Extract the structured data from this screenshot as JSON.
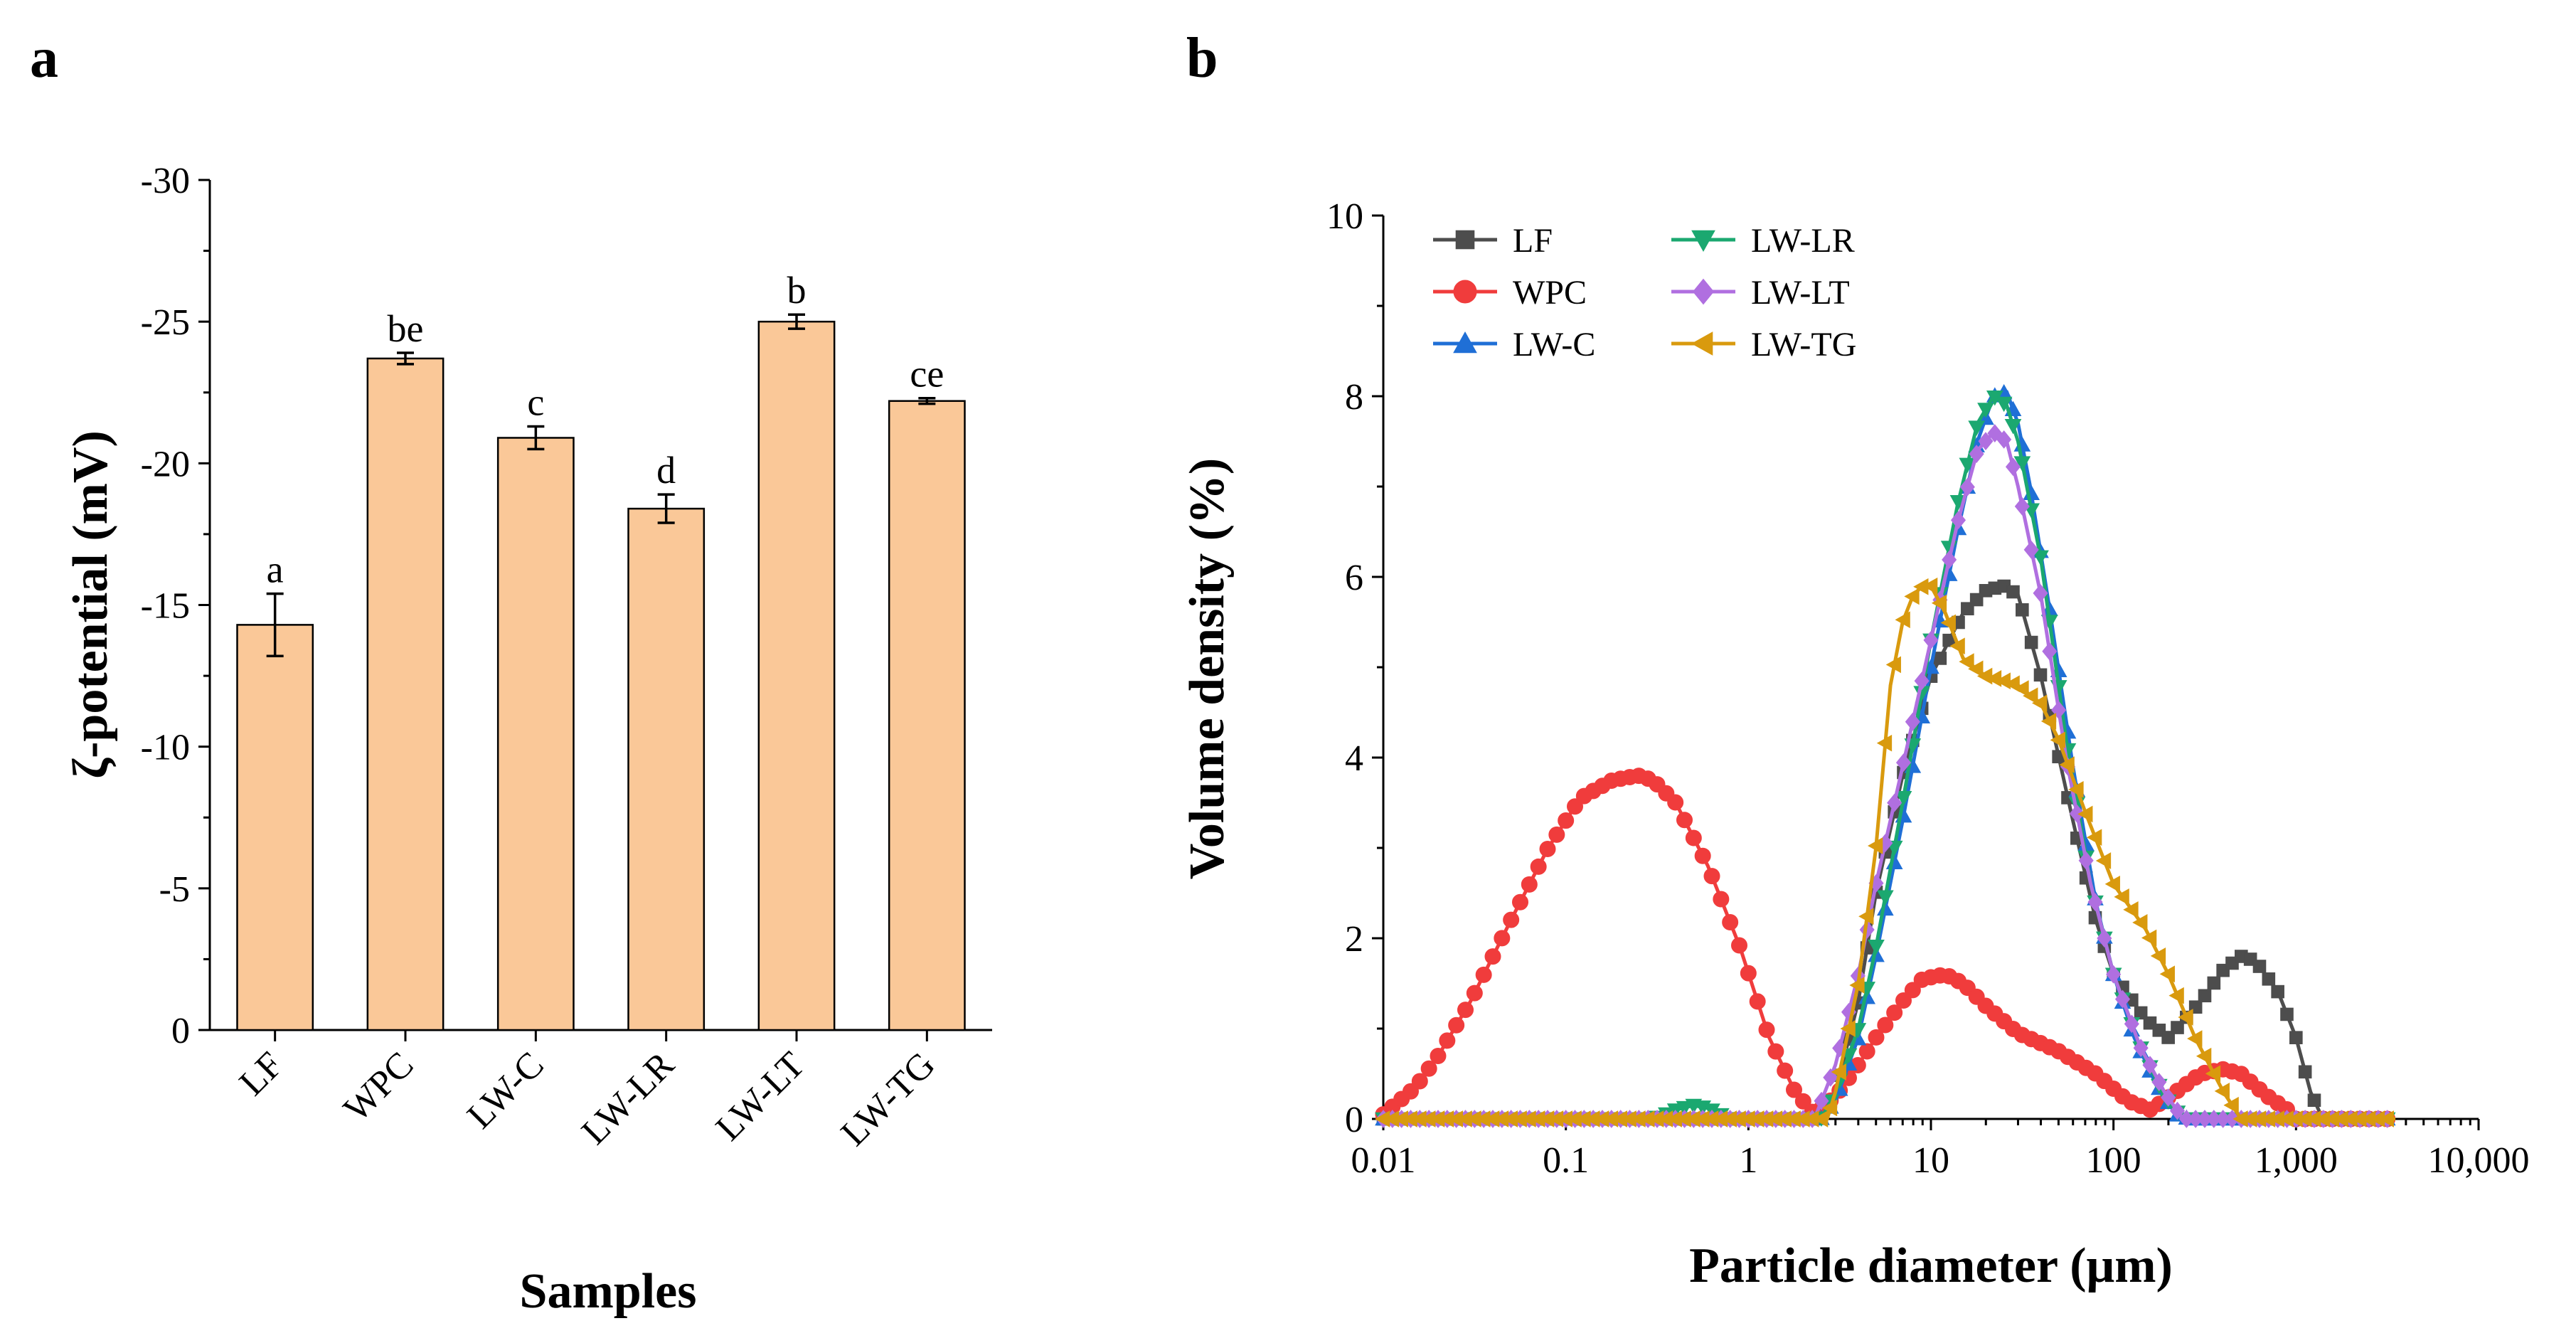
{
  "panels": {
    "a": "a",
    "b": "b"
  },
  "chart_data": [
    {
      "type": "bar",
      "panel": "a",
      "xlabel": "Samples",
      "ylabel": "ζ-potential (mV)",
      "ylim": [
        0,
        -30
      ],
      "yticks": [
        "0",
        "-5",
        "-10",
        "-15",
        "-20",
        "-25",
        "-30"
      ],
      "ytick_values": [
        0,
        -5,
        -10,
        -15,
        -20,
        -25,
        -30
      ],
      "categories": [
        "LF",
        "WPC",
        "LW-C",
        "LW-LR",
        "LW-LT",
        "LW-TG"
      ],
      "values": [
        -14.3,
        -23.7,
        -20.9,
        -18.4,
        -25.0,
        -22.2
      ],
      "errors": [
        1.1,
        0.2,
        0.4,
        0.5,
        0.25,
        0.1
      ],
      "significance": [
        "a",
        "be",
        "c",
        "d",
        "b",
        "ce"
      ],
      "bar_color": "#FAC898"
    },
    {
      "type": "line",
      "panel": "b",
      "xlabel": "Particle diameter (μm)",
      "ylabel": "Volume density (%)",
      "xscale": "log",
      "xlim": [
        0.01,
        10000
      ],
      "ylim": [
        0,
        10
      ],
      "xticks": [
        "0.01",
        "0.1",
        "1",
        "10",
        "100",
        "1,000",
        "10,000"
      ],
      "xtick_values": [
        0.01,
        0.1,
        1,
        10,
        100,
        1000,
        10000
      ],
      "yticks": [
        "0",
        "2",
        "4",
        "6",
        "8",
        "10"
      ],
      "ytick_values": [
        0,
        2,
        4,
        6,
        8,
        10
      ],
      "legend_position": "top-left",
      "series": [
        {
          "name": "LF",
          "color": "#4D4D4D",
          "marker": "square",
          "x": [
            0.01,
            2.5,
            3,
            4,
            5,
            7,
            10,
            15,
            20,
            25,
            30,
            40,
            60,
            80,
            100,
            150,
            200,
            300,
            400,
            500,
            600,
            800,
            1000,
            1200,
            1400,
            3500
          ],
          "y": [
            0,
            0,
            0.3,
            1.3,
            2.5,
            3.8,
            4.9,
            5.6,
            5.85,
            5.9,
            5.8,
            4.9,
            3.3,
            2.2,
            1.6,
            1.1,
            0.9,
            1.3,
            1.65,
            1.8,
            1.75,
            1.4,
            0.9,
            0.3,
            0,
            0
          ]
        },
        {
          "name": "WPC",
          "color": "#F03C3C",
          "marker": "circle",
          "x": [
            0.01,
            0.015,
            0.02,
            0.03,
            0.05,
            0.08,
            0.12,
            0.18,
            0.25,
            0.3,
            0.4,
            0.6,
            0.9,
            1.3,
            1.8,
            2.3,
            3,
            4,
            5,
            7,
            9,
            12,
            15,
            20,
            30,
            50,
            80,
            120,
            160,
            220,
            300,
            400,
            500,
            700,
            900,
            1000,
            3500
          ],
          "y": [
            0.05,
            0.35,
            0.7,
            1.3,
            2.2,
            3.0,
            3.55,
            3.75,
            3.8,
            3.75,
            3.5,
            2.8,
            1.9,
            0.9,
            0.3,
            0.05,
            0.25,
            0.6,
            0.9,
            1.3,
            1.55,
            1.6,
            1.5,
            1.25,
            0.95,
            0.75,
            0.5,
            0.2,
            0.1,
            0.3,
            0.5,
            0.55,
            0.5,
            0.25,
            0.1,
            0,
            0
          ]
        },
        {
          "name": "LW-C",
          "color": "#1F6FD6",
          "marker": "triangle-up",
          "x": [
            0.01,
            2.5,
            3,
            4,
            5,
            7,
            10,
            14,
            18,
            22,
            26,
            30,
            35,
            45,
            60,
            80,
            100,
            130,
            170,
            220,
            260,
            3500
          ],
          "y": [
            0,
            0,
            0.2,
            0.9,
            1.8,
            3.3,
            5.0,
            6.5,
            7.5,
            8.0,
            8.05,
            7.7,
            7.0,
            5.6,
            3.9,
            2.4,
            1.6,
            0.9,
            0.4,
            0.05,
            0,
            0
          ]
        },
        {
          "name": "LW-LR",
          "color": "#1BA870",
          "marker": "triangle-down",
          "x": [
            0.01,
            0.3,
            0.35,
            0.4,
            0.5,
            0.6,
            0.7,
            0.8,
            2.5,
            3,
            4,
            5,
            7,
            10,
            14,
            18,
            22,
            26,
            30,
            40,
            55,
            75,
            100,
            140,
            190,
            240,
            3500
          ],
          "y": [
            0,
            0,
            0.05,
            0.1,
            0.15,
            0.12,
            0.05,
            0,
            0,
            0.3,
            1.0,
            1.9,
            3.5,
            5.3,
            6.8,
            7.7,
            8.0,
            7.9,
            7.5,
            6.2,
            4.2,
            2.6,
            1.6,
            0.8,
            0.25,
            0,
            0
          ]
        },
        {
          "name": "LW-LT",
          "color": "#B06FE0",
          "marker": "diamond",
          "x": [
            0.01,
            2.3,
            3,
            4,
            5,
            7,
            10,
            14,
            18,
            22,
            26,
            30,
            40,
            55,
            75,
            100,
            140,
            190,
            240,
            3500
          ],
          "y": [
            0,
            0,
            0.6,
            1.6,
            2.6,
            3.9,
            5.3,
            6.6,
            7.4,
            7.6,
            7.5,
            7.0,
            5.8,
            4.0,
            2.6,
            1.6,
            0.8,
            0.3,
            0,
            0
          ]
        },
        {
          "name": "LW-TG",
          "color": "#D99A0E",
          "marker": "triangle-left",
          "x": [
            0.01,
            2.7,
            3,
            4,
            5,
            6,
            7,
            8,
            9,
            10,
            12,
            15,
            20,
            25,
            30,
            40,
            50,
            70,
            100,
            150,
            200,
            280,
            400,
            500,
            3500
          ],
          "y": [
            0,
            0,
            0.3,
            1.5,
            3.0,
            4.8,
            5.5,
            5.8,
            5.9,
            5.9,
            5.6,
            5.1,
            4.9,
            4.85,
            4.8,
            4.6,
            4.2,
            3.4,
            2.6,
            2.1,
            1.6,
            0.9,
            0.3,
            0,
            0
          ]
        }
      ]
    }
  ]
}
